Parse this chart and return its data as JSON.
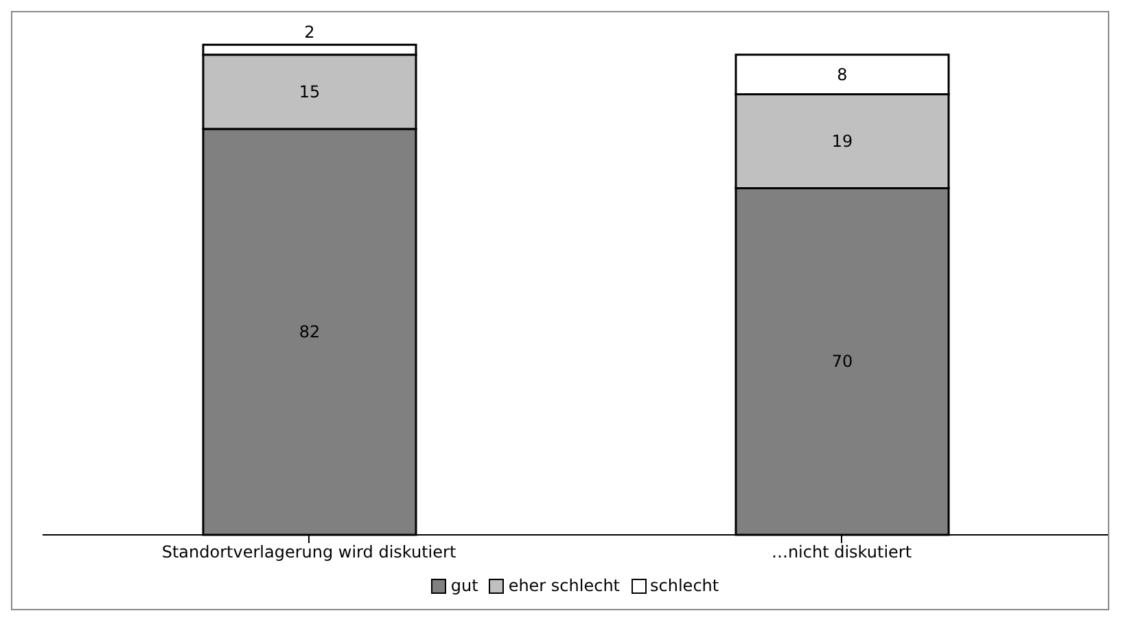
{
  "chart_data": {
    "type": "bar",
    "stacked": true,
    "categories": [
      "Standortverlagerung wird diskutiert",
      "…nicht diskutiert"
    ],
    "series": [
      {
        "name": "gut",
        "color": "#808080",
        "values": [
          82,
          70
        ]
      },
      {
        "name": "eher schlecht",
        "color": "#c0c0c0",
        "values": [
          15,
          19
        ]
      },
      {
        "name": "schlecht",
        "color": "#ffffff",
        "values": [
          2,
          8
        ]
      }
    ],
    "data_labels": true,
    "legend": "bottom",
    "grid": false
  }
}
